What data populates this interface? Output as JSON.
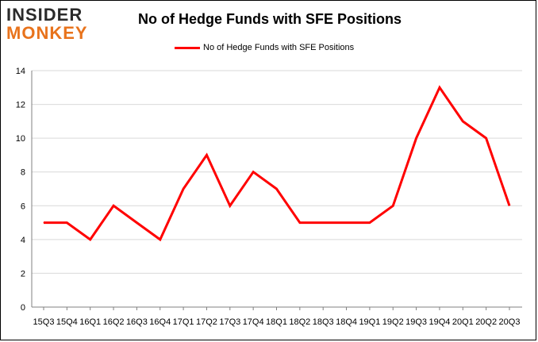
{
  "logo": {
    "line1": "INSIDER",
    "line2": "MONKEY"
  },
  "chart_data": {
    "type": "line",
    "title": "No of Hedge Funds with SFE Positions",
    "xlabel": "",
    "ylabel": "",
    "ylim": [
      0,
      14
    ],
    "yticks": [
      0,
      2,
      4,
      6,
      8,
      10,
      12,
      14
    ],
    "grid": true,
    "legend_position": "top-center",
    "categories": [
      "15Q3",
      "15Q4",
      "16Q1",
      "16Q2",
      "16Q3",
      "16Q4",
      "17Q1",
      "17Q2",
      "17Q3",
      "17Q4",
      "18Q1",
      "18Q2",
      "18Q3",
      "18Q4",
      "19Q1",
      "19Q2",
      "19Q3",
      "19Q4",
      "20Q1",
      "20Q2",
      "20Q3"
    ],
    "series": [
      {
        "name": "No of Hedge Funds with SFE Positions",
        "color": "#ff0000",
        "values": [
          5,
          5,
          4,
          6,
          5,
          4,
          7,
          9,
          6,
          8,
          7,
          5,
          5,
          5,
          5,
          6,
          10,
          13,
          11,
          10,
          6
        ]
      }
    ]
  }
}
